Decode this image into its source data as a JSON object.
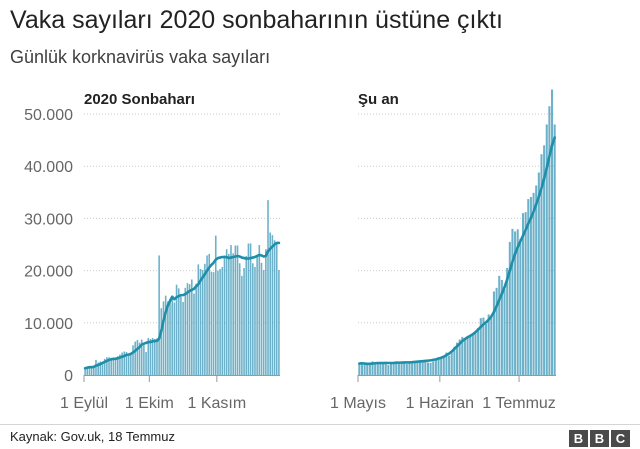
{
  "header": {
    "title": "Vaka sayıları 2020 sonbaharının üstüne çıktı",
    "subtitle": "Günlük korknavirüs vaka sayıları"
  },
  "footer": {
    "source": "Kaynak: Gov.uk, 18 Temmuz",
    "logo": [
      "B",
      "B",
      "C"
    ]
  },
  "colors": {
    "bar": "#6cb1c9",
    "line": "#1f8ea9",
    "grid": "#cccccc",
    "axis": "#999999",
    "text": "#222222",
    "tick_text": "#666666"
  },
  "chart_data": [
    {
      "type": "bar",
      "title": "2020 Sonbaharı",
      "overlay": "7-day rolling average line",
      "ylim": [
        0,
        50000
      ],
      "yticks": [
        0,
        10000,
        20000,
        30000,
        40000,
        50000
      ],
      "ytick_labels": [
        "0",
        "10.000",
        "20.000",
        "30.000",
        "40.000",
        "50.000"
      ],
      "xtick_labels": [
        {
          "label": "1 Eylül",
          "day_index": 0
        },
        {
          "label": "1 Ekim",
          "day_index": 30
        },
        {
          "label": "1 Kasım",
          "day_index": 61
        }
      ],
      "grid": true,
      "values": [
        1300,
        1600,
        1700,
        1500,
        1800,
        2900,
        2400,
        2600,
        2500,
        3100,
        3400,
        3400,
        3300,
        3100,
        3000,
        3600,
        3900,
        4300,
        4500,
        4400,
        4000,
        4200,
        5700,
        6400,
        6700,
        6200,
        6800,
        5700,
        4400,
        7100,
        6900,
        7100,
        6900,
        7000,
        22900,
        12800,
        14100,
        15200,
        14100,
        14500,
        15100,
        13900,
        17300,
        16600,
        15000,
        14000,
        16700,
        17600,
        17400,
        18300,
        15600,
        17500,
        21200,
        20300,
        20100,
        21300,
        22900,
        23200,
        19800,
        19700,
        26700,
        20000,
        20300,
        20700,
        22900,
        24100,
        23200,
        24900,
        23300,
        24800,
        24800,
        21400,
        19000,
        20500,
        22800,
        25200,
        25200,
        21400,
        20700,
        22900,
        24900,
        21500,
        20100,
        24100,
        33500,
        27300,
        26800,
        25800,
        25300,
        20100
      ],
      "rolling_avg": [
        1300,
        1400,
        1500,
        1500,
        1550,
        1800,
        1900,
        2100,
        2300,
        2500,
        2700,
        2900,
        3000,
        3100,
        3100,
        3200,
        3350,
        3500,
        3650,
        3850,
        3900,
        4050,
        4300,
        4650,
        5000,
        5350,
        5800,
        6000,
        6150,
        6300,
        6300,
        6450,
        6500,
        6550,
        7000,
        8500,
        10400,
        12000,
        13300,
        14200,
        15000,
        14500,
        14900,
        15100,
        15300,
        15300,
        15500,
        15800,
        16100,
        16300,
        16500,
        17000,
        17400,
        18100,
        18700,
        19300,
        20000,
        20600,
        21100,
        21500,
        22100,
        22400,
        22500,
        22600,
        22600,
        22600,
        22400,
        22500,
        22600,
        22700,
        22800,
        22700,
        22500,
        22400,
        22300,
        22300,
        22400,
        22500,
        22600,
        22800,
        23000,
        22900,
        22700,
        22800,
        23700,
        24200,
        24600,
        25000,
        25300,
        25300
      ]
    },
    {
      "type": "bar",
      "title": "Şu an",
      "overlay": "7-day rolling average line",
      "ylim": [
        0,
        50000
      ],
      "yticks": [
        0,
        10000,
        20000,
        30000,
        40000,
        50000
      ],
      "xtick_labels": [
        {
          "label": "1 Mayıs",
          "day_index": 0
        },
        {
          "label": "1 Haziran",
          "day_index": 31
        },
        {
          "label": "1 Temmuz",
          "day_index": 61
        }
      ],
      "grid": true,
      "values": [
        2200,
        2300,
        2000,
        2000,
        2100,
        2600,
        2300,
        2400,
        2200,
        2400,
        2300,
        1900,
        2200,
        2300,
        2600,
        2300,
        2400,
        2500,
        2100,
        2300,
        2300,
        2500,
        2600,
        2800,
        2800,
        2900,
        2400,
        2300,
        2600,
        3000,
        3400,
        3200,
        3500,
        4300,
        3700,
        4300,
        5400,
        6200,
        6800,
        7300,
        7000,
        7500,
        7600,
        7700,
        8100,
        9000,
        10900,
        11000,
        9800,
        11600,
        11000,
        16000,
        16700,
        19000,
        18200,
        16400,
        20500,
        25500,
        28000,
        27500,
        27900,
        26100,
        31000,
        31200,
        33700,
        34100,
        34900,
        36300,
        38800,
        42300,
        44000,
        48000,
        51500,
        54700,
        48000
      ],
      "rolling_avg": [
        2200,
        2250,
        2200,
        2150,
        2150,
        2200,
        2250,
        2300,
        2300,
        2300,
        2320,
        2300,
        2300,
        2320,
        2350,
        2370,
        2380,
        2400,
        2400,
        2420,
        2450,
        2500,
        2550,
        2600,
        2650,
        2700,
        2750,
        2800,
        2900,
        3000,
        3150,
        3300,
        3500,
        3800,
        4100,
        4500,
        5000,
        5500,
        6000,
        6500,
        6900,
        7200,
        7500,
        7800,
        8200,
        8700,
        9200,
        9700,
        10100,
        10600,
        11200,
        12100,
        13200,
        14400,
        15600,
        16800,
        18300,
        20000,
        21700,
        23200,
        24500,
        25600,
        26700,
        27800,
        29000,
        30100,
        31300,
        32700,
        34200,
        35800,
        37600,
        39700,
        41900,
        44000,
        45500
      ]
    }
  ]
}
